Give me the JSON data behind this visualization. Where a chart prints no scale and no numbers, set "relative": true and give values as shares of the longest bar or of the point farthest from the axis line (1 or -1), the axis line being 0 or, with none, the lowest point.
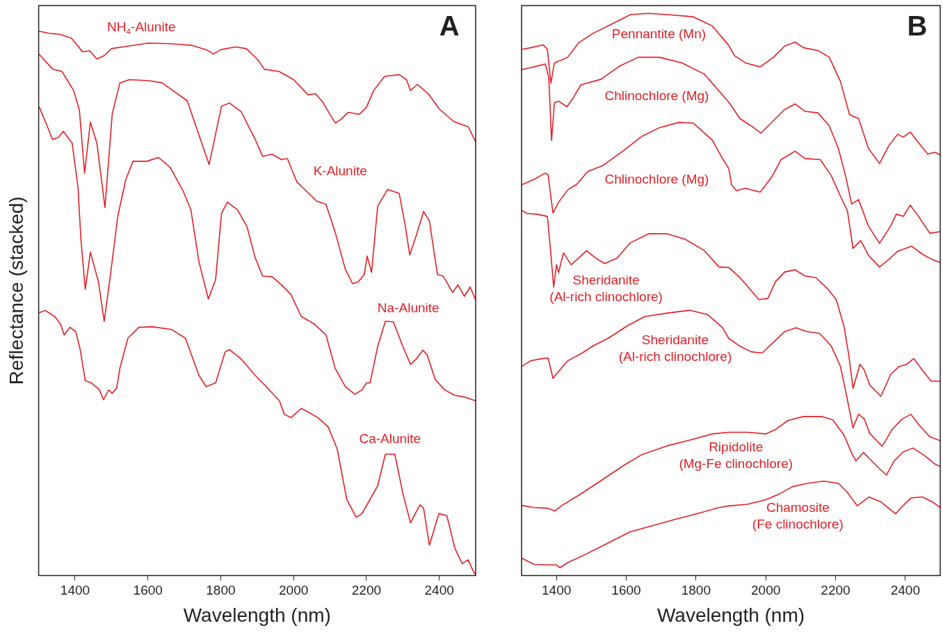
{
  "chart_data": [
    {
      "type": "line",
      "relative": true,
      "xlabel": "Wavelength (nm)",
      "ylabel": "Reflectance (stacked)",
      "xlim": [
        1300,
        2500
      ],
      "xticks": [
        1400,
        1600,
        1800,
        2000,
        2200,
        2400
      ],
      "grid": false,
      "legend": false,
      "marker": "none",
      "annotations": [
        "A"
      ],
      "series": [
        {
          "name": "NH$_{4}$-Alunite",
          "color": "#e31e24",
          "x": [
            1300,
            1330,
            1360,
            1390,
            1410,
            1420,
            1440,
            1460,
            1480,
            1500,
            1540,
            1600,
            1660,
            1720,
            1760,
            1780,
            1800,
            1840,
            1870,
            1900,
            1920,
            1960,
            2000,
            2040,
            2060,
            2080,
            2100,
            2115,
            2130,
            2150,
            2180,
            2200,
            2220,
            2250,
            2290,
            2310,
            2321,
            2340,
            2370,
            2400,
            2440,
            2480,
            2500
          ],
          "values": [
            1.0,
            0.996,
            0.994,
            0.987,
            0.971,
            0.962,
            0.964,
            0.949,
            0.955,
            0.968,
            0.972,
            0.978,
            0.977,
            0.974,
            0.966,
            0.958,
            0.966,
            0.971,
            0.968,
            0.949,
            0.93,
            0.926,
            0.911,
            0.883,
            0.885,
            0.87,
            0.847,
            0.831,
            0.838,
            0.851,
            0.847,
            0.86,
            0.891,
            0.917,
            0.92,
            0.911,
            0.891,
            0.902,
            0.885,
            0.857,
            0.834,
            0.824,
            0.796
          ]
        },
        {
          "name": "K-Alunite",
          "color": "#e31e24",
          "x": [
            1302,
            1339,
            1364,
            1396,
            1412,
            1426,
            1442,
            1460,
            1482,
            1502,
            1523,
            1549,
            1603,
            1639,
            1708,
            1768,
            1802,
            1824,
            1856,
            1894,
            1915,
            1941,
            1967,
            1983,
            2009,
            2063,
            2089,
            2114,
            2142,
            2162,
            2178,
            2194,
            2202,
            2214,
            2231,
            2258,
            2290,
            2306,
            2319,
            2337,
            2357,
            2373,
            2395,
            2411,
            2437,
            2451,
            2469,
            2485,
            2500
          ],
          "values": [
            0.957,
            0.93,
            0.926,
            0.891,
            0.854,
            0.739,
            0.833,
            0.794,
            0.676,
            0.848,
            0.905,
            0.911,
            0.909,
            0.905,
            0.872,
            0.755,
            0.862,
            0.868,
            0.852,
            0.802,
            0.77,
            0.774,
            0.764,
            0.766,
            0.723,
            0.688,
            0.682,
            0.631,
            0.563,
            0.536,
            0.54,
            0.553,
            0.587,
            0.557,
            0.679,
            0.709,
            0.702,
            0.645,
            0.589,
            0.625,
            0.669,
            0.651,
            0.553,
            0.55,
            0.52,
            0.534,
            0.513,
            0.53,
            0.506
          ]
        },
        {
          "name": "Na-Alunite",
          "color": "#e31e24",
          "x": [
            1302,
            1322,
            1338,
            1354,
            1368,
            1392,
            1408,
            1416,
            1428,
            1442,
            1464,
            1480,
            1498,
            1517,
            1539,
            1559,
            1597,
            1629,
            1661,
            1697,
            1718,
            1740,
            1766,
            1786,
            1802,
            1818,
            1846,
            1872,
            1894,
            1915,
            1941,
            1967,
            1993,
            2021,
            2057,
            2089,
            2114,
            2142,
            2168,
            2188,
            2200,
            2210,
            2231,
            2252,
            2274,
            2300,
            2321,
            2337,
            2355,
            2367,
            2389,
            2415,
            2443,
            2469,
            2500
          ],
          "values": [
            0.86,
            0.828,
            0.801,
            0.805,
            0.816,
            0.794,
            0.713,
            0.618,
            0.526,
            0.594,
            0.54,
            0.467,
            0.557,
            0.659,
            0.727,
            0.761,
            0.761,
            0.768,
            0.75,
            0.706,
            0.672,
            0.577,
            0.508,
            0.544,
            0.665,
            0.686,
            0.672,
            0.641,
            0.585,
            0.55,
            0.549,
            0.534,
            0.516,
            0.476,
            0.462,
            0.442,
            0.381,
            0.347,
            0.333,
            0.341,
            0.354,
            0.354,
            0.421,
            0.467,
            0.466,
            0.421,
            0.388,
            0.398,
            0.414,
            0.405,
            0.36,
            0.341,
            0.331,
            0.328,
            0.321
          ]
        },
        {
          "name": "Ca-Alunite",
          "color": "#e31e24",
          "x": [
            1302,
            1318,
            1344,
            1360,
            1370,
            1386,
            1402,
            1414,
            1428,
            1444,
            1466,
            1478,
            1492,
            1502,
            1514,
            1523,
            1545,
            1575,
            1613,
            1665,
            1703,
            1740,
            1760,
            1786,
            1812,
            1824,
            1856,
            1894,
            1925,
            1961,
            1975,
            1993,
            2021,
            2041,
            2067,
            2095,
            2120,
            2146,
            2172,
            2188,
            2210,
            2231,
            2252,
            2278,
            2300,
            2321,
            2347,
            2357,
            2373,
            2399,
            2421,
            2443,
            2463,
            2479,
            2493,
            2500
          ],
          "values": [
            0.483,
            0.487,
            0.476,
            0.462,
            0.442,
            0.456,
            0.448,
            0.415,
            0.358,
            0.354,
            0.342,
            0.323,
            0.341,
            0.335,
            0.344,
            0.381,
            0.436,
            0.456,
            0.457,
            0.452,
            0.436,
            0.368,
            0.347,
            0.354,
            0.411,
            0.415,
            0.398,
            0.368,
            0.347,
            0.321,
            0.296,
            0.29,
            0.307,
            0.3,
            0.29,
            0.273,
            0.232,
            0.14,
            0.107,
            0.114,
            0.14,
            0.165,
            0.223,
            0.223,
            0.151,
            0.097,
            0.13,
            0.124,
            0.056,
            0.114,
            0.11,
            0.05,
            0.022,
            0.029,
            0.009,
            0.001
          ]
        }
      ]
    },
    {
      "type": "line",
      "relative": true,
      "xlabel": "Wavelength (nm)",
      "xlim": [
        1300,
        2500
      ],
      "xticks": [
        1400,
        1600,
        1800,
        2000,
        2200,
        2400
      ],
      "grid": false,
      "legend": false,
      "marker": "none",
      "annotations": [
        "B"
      ],
      "series": [
        {
          "name": "Pennantite (Mn)",
          "color": "#e31e24",
          "x": [
            1300,
            1326,
            1362,
            1374,
            1384,
            1394,
            1410,
            1432,
            1464,
            1506,
            1558,
            1612,
            1664,
            1718,
            1792,
            1846,
            1894,
            1910,
            1942,
            1984,
            2022,
            2054,
            2084,
            2108,
            2150,
            2182,
            2214,
            2240,
            2266,
            2294,
            2326,
            2352,
            2378,
            2394,
            2414,
            2438,
            2464,
            2486,
            2500
          ],
          "values": [
            0.936,
            0.939,
            0.944,
            0.936,
            0.876,
            0.912,
            0.916,
            0.922,
            0.948,
            0.965,
            0.981,
            0.998,
            1.0,
            0.998,
            0.994,
            0.978,
            0.943,
            0.925,
            0.912,
            0.905,
            0.922,
            0.942,
            0.949,
            0.939,
            0.934,
            0.922,
            0.879,
            0.82,
            0.813,
            0.76,
            0.733,
            0.764,
            0.785,
            0.78,
            0.789,
            0.77,
            0.75,
            0.753,
            0.748
          ]
        },
        {
          "name": "Chlinochlore (Mg)",
          "color": "#e31e24",
          "x": [
            1300,
            1336,
            1368,
            1378,
            1386,
            1394,
            1406,
            1430,
            1448,
            1470,
            1528,
            1580,
            1634,
            1696,
            1760,
            1824,
            1894,
            1926,
            1958,
            1986,
            2028,
            2054,
            2084,
            2112,
            2150,
            2182,
            2208,
            2230,
            2246,
            2266,
            2294,
            2326,
            2358,
            2374,
            2394,
            2414,
            2438,
            2470,
            2500
          ],
          "values": [
            0.9,
            0.905,
            0.91,
            0.886,
            0.774,
            0.841,
            0.844,
            0.834,
            0.85,
            0.873,
            0.883,
            0.906,
            0.922,
            0.922,
            0.912,
            0.892,
            0.842,
            0.813,
            0.8,
            0.787,
            0.813,
            0.829,
            0.839,
            0.826,
            0.823,
            0.8,
            0.76,
            0.708,
            0.661,
            0.669,
            0.622,
            0.591,
            0.622,
            0.643,
            0.639,
            0.659,
            0.639,
            0.609,
            0.612
          ]
        },
        {
          "name": "Chlinochlore (Mg)",
          "color": "#e31e24",
          "x": [
            1300,
            1336,
            1368,
            1376,
            1390,
            1406,
            1432,
            1458,
            1490,
            1532,
            1590,
            1644,
            1696,
            1750,
            1792,
            1846,
            1876,
            1894,
            1902,
            1916,
            1942,
            1984,
            2016,
            2044,
            2084,
            2112,
            2156,
            2188,
            2214,
            2234,
            2250,
            2272,
            2294,
            2326,
            2352,
            2378,
            2418,
            2448,
            2478,
            2500
          ],
          "values": [
            0.695,
            0.705,
            0.716,
            0.713,
            0.645,
            0.664,
            0.686,
            0.696,
            0.719,
            0.729,
            0.755,
            0.781,
            0.797,
            0.806,
            0.805,
            0.775,
            0.742,
            0.724,
            0.695,
            0.685,
            0.689,
            0.682,
            0.708,
            0.74,
            0.755,
            0.742,
            0.74,
            0.711,
            0.675,
            0.649,
            0.582,
            0.596,
            0.57,
            0.549,
            0.562,
            0.577,
            0.586,
            0.572,
            0.562,
            0.557
          ]
        },
        {
          "name": "Sheridanite (Al-rich clinochlore)",
          "color": "#e31e24",
          "x": [
            1300,
            1316,
            1342,
            1374,
            1384,
            1392,
            1400,
            1406,
            1420,
            1442,
            1464,
            1486,
            1512,
            1538,
            1574,
            1612,
            1664,
            1718,
            1770,
            1824,
            1866,
            1894,
            1926,
            1958,
            1980,
            2006,
            2028,
            2054,
            2084,
            2112,
            2144,
            2176,
            2202,
            2224,
            2238,
            2250,
            2270,
            2282,
            2298,
            2330,
            2358,
            2382,
            2404,
            2424,
            2448,
            2474,
            2500
          ],
          "values": [
            0.65,
            0.644,
            0.643,
            0.639,
            0.572,
            0.513,
            0.553,
            0.539,
            0.574,
            0.553,
            0.565,
            0.578,
            0.565,
            0.555,
            0.565,
            0.592,
            0.608,
            0.608,
            0.598,
            0.578,
            0.549,
            0.548,
            0.53,
            0.507,
            0.491,
            0.493,
            0.523,
            0.54,
            0.544,
            0.533,
            0.53,
            0.511,
            0.491,
            0.444,
            0.392,
            0.333,
            0.376,
            0.366,
            0.339,
            0.319,
            0.358,
            0.372,
            0.376,
            0.386,
            0.366,
            0.346,
            0.346
          ]
        },
        {
          "name": "Sheridanite (Al-rich clinochlore)",
          "color": "#e31e24",
          "x": [
            1300,
            1326,
            1358,
            1376,
            1390,
            1406,
            1432,
            1474,
            1506,
            1548,
            1602,
            1654,
            1718,
            1782,
            1834,
            1876,
            1894,
            1926,
            1958,
            1990,
            2022,
            2054,
            2086,
            2118,
            2154,
            2188,
            2214,
            2232,
            2250,
            2266,
            2282,
            2298,
            2334,
            2362,
            2390,
            2416,
            2438,
            2470,
            2500
          ],
          "values": [
            0.372,
            0.382,
            0.386,
            0.387,
            0.351,
            0.363,
            0.382,
            0.396,
            0.409,
            0.422,
            0.444,
            0.461,
            0.467,
            0.472,
            0.464,
            0.441,
            0.422,
            0.408,
            0.398,
            0.396,
            0.415,
            0.434,
            0.441,
            0.434,
            0.431,
            0.408,
            0.372,
            0.319,
            0.263,
            0.287,
            0.279,
            0.253,
            0.23,
            0.26,
            0.278,
            0.287,
            0.269,
            0.247,
            0.24
          ]
        },
        {
          "name": "Ripidolite (Mg-Fe clinochlore)",
          "color": "#e31e24",
          "x": [
            1300,
            1336,
            1374,
            1396,
            1416,
            1464,
            1528,
            1590,
            1644,
            1718,
            1782,
            1846,
            1894,
            1948,
            2000,
            2028,
            2064,
            2108,
            2160,
            2192,
            2224,
            2246,
            2258,
            2280,
            2304,
            2326,
            2346,
            2368,
            2394,
            2422,
            2454,
            2486,
            2500
          ],
          "values": [
            0.125,
            0.121,
            0.12,
            0.115,
            0.125,
            0.143,
            0.169,
            0.195,
            0.215,
            0.231,
            0.241,
            0.252,
            0.255,
            0.255,
            0.252,
            0.26,
            0.276,
            0.283,
            0.283,
            0.277,
            0.25,
            0.218,
            0.204,
            0.219,
            0.204,
            0.19,
            0.179,
            0.204,
            0.22,
            0.227,
            0.214,
            0.198,
            0.194
          ]
        },
        {
          "name": "Chamosite (Fe clinochlore)",
          "color": "#e31e24",
          "x": [
            1300,
            1336,
            1374,
            1400,
            1410,
            1432,
            1484,
            1548,
            1612,
            1676,
            1740,
            1802,
            1866,
            1894,
            1948,
            2000,
            2038,
            2076,
            2118,
            2166,
            2208,
            2234,
            2262,
            2296,
            2330,
            2372,
            2394,
            2416,
            2448,
            2478,
            2500
          ],
          "values": [
            0.031,
            0.02,
            0.019,
            0.019,
            0.014,
            0.023,
            0.038,
            0.058,
            0.078,
            0.089,
            0.1,
            0.11,
            0.121,
            0.124,
            0.127,
            0.135,
            0.145,
            0.158,
            0.164,
            0.168,
            0.164,
            0.148,
            0.124,
            0.14,
            0.131,
            0.11,
            0.125,
            0.138,
            0.14,
            0.131,
            0.121
          ]
        }
      ]
    }
  ]
}
